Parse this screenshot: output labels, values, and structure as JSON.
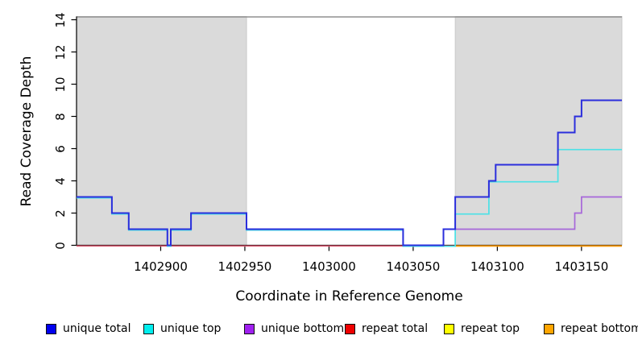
{
  "chart_data": {
    "type": "line",
    "subtype": "step-after",
    "title": "",
    "xlabel": "Coordinate in Reference Genome",
    "ylabel": "Read Coverage Depth",
    "xlim": [
      1402850,
      1403174
    ],
    "ylim": [
      0,
      14
    ],
    "x_ticks": [
      1402900,
      1402950,
      1403000,
      1403050,
      1403100,
      1403150
    ],
    "y_ticks": [
      0,
      2,
      4,
      6,
      8,
      10,
      12,
      14
    ],
    "grid": false,
    "legend_position": "bottom",
    "highlight_regions": [
      {
        "name": "repeat-region-left",
        "x_start": 1402850,
        "x_end": 1402951,
        "fill": "#dadada",
        "border": "#c9c9c9"
      },
      {
        "name": "repeat-region-right",
        "x_start": 1403075,
        "x_end": 1403174,
        "fill": "#dadada",
        "border": "#c9c9c9"
      }
    ],
    "top_border_color": "#8f8f8f",
    "axis_color": "#000000",
    "series": [
      {
        "key": "unique_total",
        "name": "unique total",
        "color": "#2b2edc",
        "width": 2.0,
        "points": [
          [
            1402850,
            3
          ],
          [
            1402871,
            2
          ],
          [
            1402881,
            1
          ],
          [
            1402904,
            0
          ],
          [
            1402906,
            1
          ],
          [
            1402918,
            2
          ],
          [
            1402951,
            1
          ],
          [
            1403044,
            0
          ],
          [
            1403068,
            1
          ],
          [
            1403075,
            3
          ],
          [
            1403095,
            4
          ],
          [
            1403099,
            5
          ],
          [
            1403136,
            7
          ],
          [
            1403146,
            8
          ],
          [
            1403150,
            9
          ],
          [
            1403174,
            9
          ]
        ]
      },
      {
        "key": "unique_top",
        "name": "unique top",
        "color": "#4ae1e6",
        "width": 1.7,
        "points": [
          [
            1402850,
            3
          ],
          [
            1402871,
            2
          ],
          [
            1402881,
            1
          ],
          [
            1402904,
            0
          ],
          [
            1402906,
            1
          ],
          [
            1402918,
            2
          ],
          [
            1402951,
            1
          ],
          [
            1403044,
            0
          ],
          [
            1403075,
            2
          ],
          [
            1403095,
            4
          ],
          [
            1403136,
            6
          ],
          [
            1403174,
            6
          ]
        ]
      },
      {
        "key": "unique_bottom",
        "name": "unique bottom",
        "color": "#a767d9",
        "width": 1.7,
        "points": [
          [
            1403068,
            1
          ],
          [
            1403146,
            2
          ],
          [
            1403150,
            3
          ],
          [
            1403174,
            3
          ]
        ]
      },
      {
        "key": "repeat_total",
        "name": "repeat total",
        "color": "#db5870",
        "width": 1.7,
        "points": [
          [
            1402850,
            0
          ],
          [
            1403174,
            0
          ]
        ]
      },
      {
        "key": "repeat_top",
        "name": "repeat top",
        "color": "#eeee22",
        "width": 1.5,
        "points": [
          [
            1403075,
            0
          ],
          [
            1403174,
            0
          ]
        ]
      },
      {
        "key": "repeat_bottom",
        "name": "repeat bottom",
        "color": "#ff9d00",
        "width": 1.8,
        "points": [
          [
            1403075,
            0
          ],
          [
            1403174,
            0
          ]
        ]
      }
    ],
    "draw_order": [
      "repeat_total",
      "repeat_top",
      "repeat_bottom",
      "unique_top",
      "unique_bottom",
      "unique_total"
    ]
  },
  "legend": {
    "items": [
      {
        "label": "unique total",
        "swatch_color": "#0000ee"
      },
      {
        "label": "unique top",
        "swatch_color": "#00eeee"
      },
      {
        "label": "unique bottom",
        "swatch_color": "#a020f0"
      },
      {
        "label": "repeat total",
        "swatch_color": "#ee0000"
      },
      {
        "label": "repeat top",
        "swatch_color": "#ffff00"
      },
      {
        "label": "repeat bottom",
        "swatch_color": "#ffa500"
      }
    ]
  }
}
